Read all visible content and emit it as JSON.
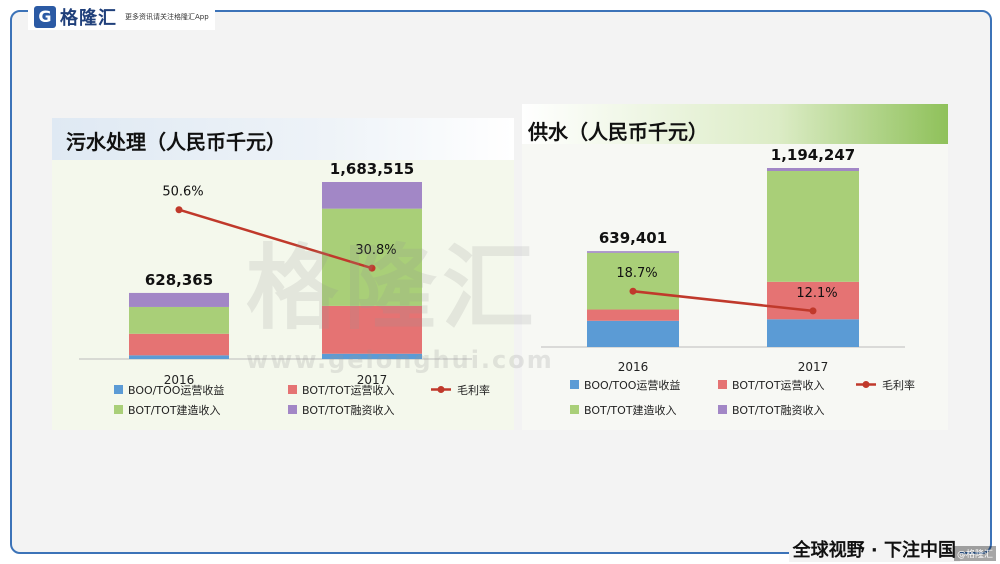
{
  "logo": {
    "mark": "G",
    "name": "格隆汇",
    "slogan": "更多资讯请关注格隆汇App"
  },
  "watermark": {
    "text": "格隆汇",
    "url": "www.gelonghui.com"
  },
  "footer": {
    "slogan": "全球视野 · 下注中国",
    "tag": "@格隆汇"
  },
  "colors": {
    "boo": "#5b9bd5",
    "bot_op": "#e57373",
    "bot_build": "#a9cf78",
    "bot_fin": "#a287c6",
    "margin": "#c0392b"
  },
  "chart_data": [
    {
      "type": "bar",
      "title": "污水处理（人民币千元）",
      "categories": [
        "2016",
        "2017"
      ],
      "totals": [
        628365,
        1683515
      ],
      "total_labels": [
        "628,365",
        "1,683,515"
      ],
      "ylim": [
        0,
        1683515
      ],
      "series": [
        {
          "name": "BOO/TOO运营收益",
          "key": "boo",
          "values": [
            35000,
            50000
          ]
        },
        {
          "name": "BOT/TOT运营收入",
          "key": "bot_op",
          "values": [
            205000,
            455000
          ]
        },
        {
          "name": "BOT/TOT建造收入",
          "key": "bot_build",
          "values": [
            255000,
            925000
          ]
        },
        {
          "name": "BOT/TOT融资收入",
          "key": "bot_fin",
          "values": [
            133365,
            253515
          ]
        }
      ],
      "line": {
        "name": "毛利率",
        "values": [
          50.6,
          30.8
        ],
        "labels": [
          "50.6%",
          "30.8%"
        ]
      },
      "legend": [
        {
          "key": "boo",
          "label": "BOO/TOO运营收益",
          "kind": "box"
        },
        {
          "key": "bot_op",
          "label": "BOT/TOT运营收入",
          "kind": "box"
        },
        {
          "key": "margin",
          "label": "毛利率",
          "kind": "line"
        },
        {
          "key": "bot_build",
          "label": "BOT/TOT建造收入",
          "kind": "box"
        },
        {
          "key": "bot_fin",
          "label": "BOT/TOT融资收入",
          "kind": "box"
        }
      ]
    },
    {
      "type": "bar",
      "title": "供水（人民币千元）",
      "categories": [
        "2016",
        "2017"
      ],
      "totals": [
        639401,
        1194247
      ],
      "total_labels": [
        "639,401",
        "1,194,247"
      ],
      "ylim": [
        0,
        1194247
      ],
      "series": [
        {
          "name": "BOO/TOO运营收益",
          "key": "boo",
          "values": [
            175000,
            185000
          ]
        },
        {
          "name": "BOT/TOT运营收入",
          "key": "bot_op",
          "values": [
            75000,
            250000
          ]
        },
        {
          "name": "BOT/TOT建造收入",
          "key": "bot_build",
          "values": [
            378401,
            739247
          ]
        },
        {
          "name": "BOT/TOT融资收入",
          "key": "bot_fin",
          "values": [
            11000,
            20000
          ]
        }
      ],
      "line": {
        "name": "毛利率",
        "values": [
          18.7,
          12.1
        ],
        "labels": [
          "18.7%",
          "12.1%"
        ]
      },
      "legend": [
        {
          "key": "boo",
          "label": "BOO/TOO运营收益",
          "kind": "box"
        },
        {
          "key": "bot_op",
          "label": "BOT/TOT运营收入",
          "kind": "box"
        },
        {
          "key": "margin",
          "label": "毛利率",
          "kind": "line"
        },
        {
          "key": "bot_build",
          "label": "BOT/TOT建造收入",
          "kind": "box"
        },
        {
          "key": "bot_fin",
          "label": "BOT/TOT融资收入",
          "kind": "box"
        }
      ]
    }
  ]
}
